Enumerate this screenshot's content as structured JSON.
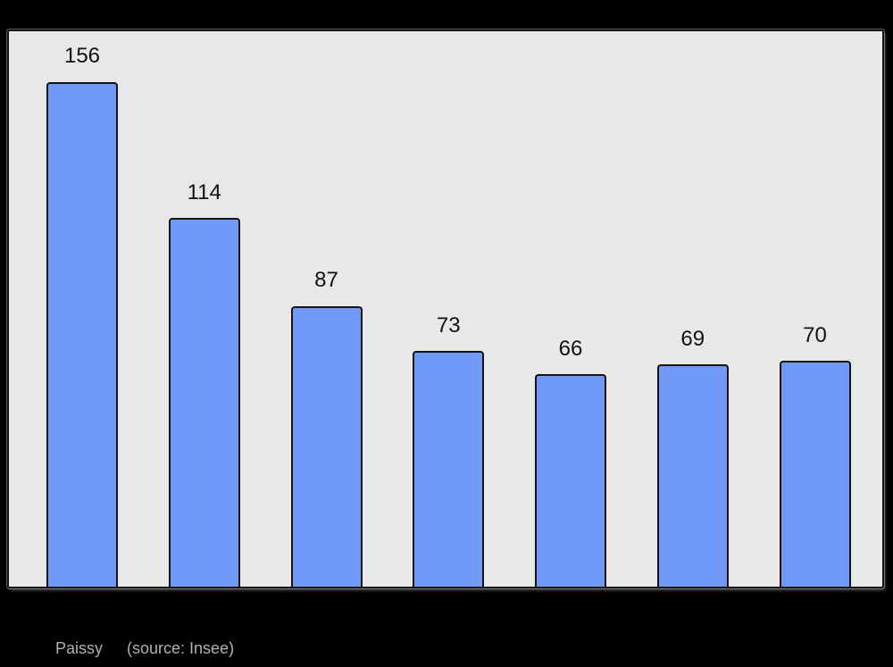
{
  "chart_data": {
    "type": "bar",
    "values": [
      156,
      114,
      87,
      73,
      66,
      69,
      70
    ],
    "show_value_labels": true,
    "title": "",
    "xlabel": "",
    "ylabel": "",
    "ylim": [
      0,
      171
    ],
    "grid": false,
    "legend": false,
    "x_tick_labels_visible": false,
    "y_axis_visible": false,
    "colors": {
      "page_background": "#000000",
      "plot_background": "#e8e8e8",
      "bar_fill": "#7099f8",
      "bar_border": "#141414",
      "value_label": "#121212"
    }
  },
  "caption": {
    "commune": "Paissy",
    "source": "(source: Insee)",
    "color": "#b0b0b0"
  }
}
